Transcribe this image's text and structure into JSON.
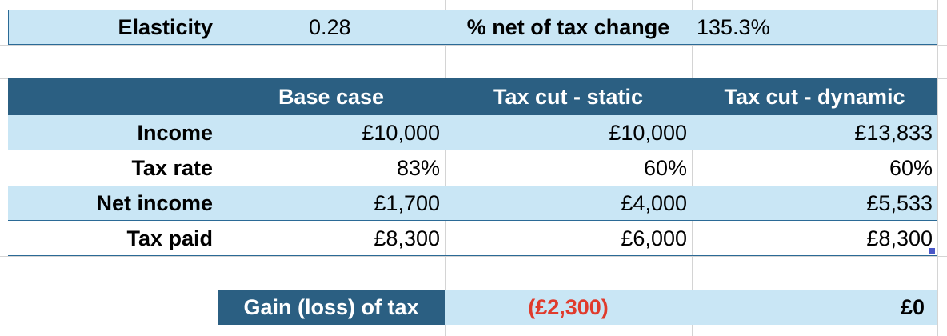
{
  "params": {
    "elasticity_label": "Elasticity",
    "elasticity_value": "0.28",
    "net_change_label": "% net of tax change",
    "net_change_value": "135.3%"
  },
  "table": {
    "columns": [
      "Base case",
      "Tax cut - static",
      "Tax cut - dynamic"
    ],
    "rows": [
      {
        "label": "Income",
        "values": [
          "£10,000",
          "£10,000",
          "£13,833"
        ]
      },
      {
        "label": "Tax rate",
        "values": [
          "83%",
          "60%",
          "60%"
        ]
      },
      {
        "label": "Net income",
        "values": [
          "£1,700",
          "£4,000",
          "£5,533"
        ]
      },
      {
        "label": "Tax paid",
        "values": [
          "£8,300",
          "£6,000",
          "£8,300"
        ]
      }
    ]
  },
  "summary": {
    "label": "Gain (loss) of tax",
    "static_value": "(£2,300)",
    "dynamic_value": "£0"
  },
  "colors": {
    "light_band": "#c9e6f5",
    "dark_header": "#2b5f82",
    "negative_text": "#e03b2c"
  }
}
